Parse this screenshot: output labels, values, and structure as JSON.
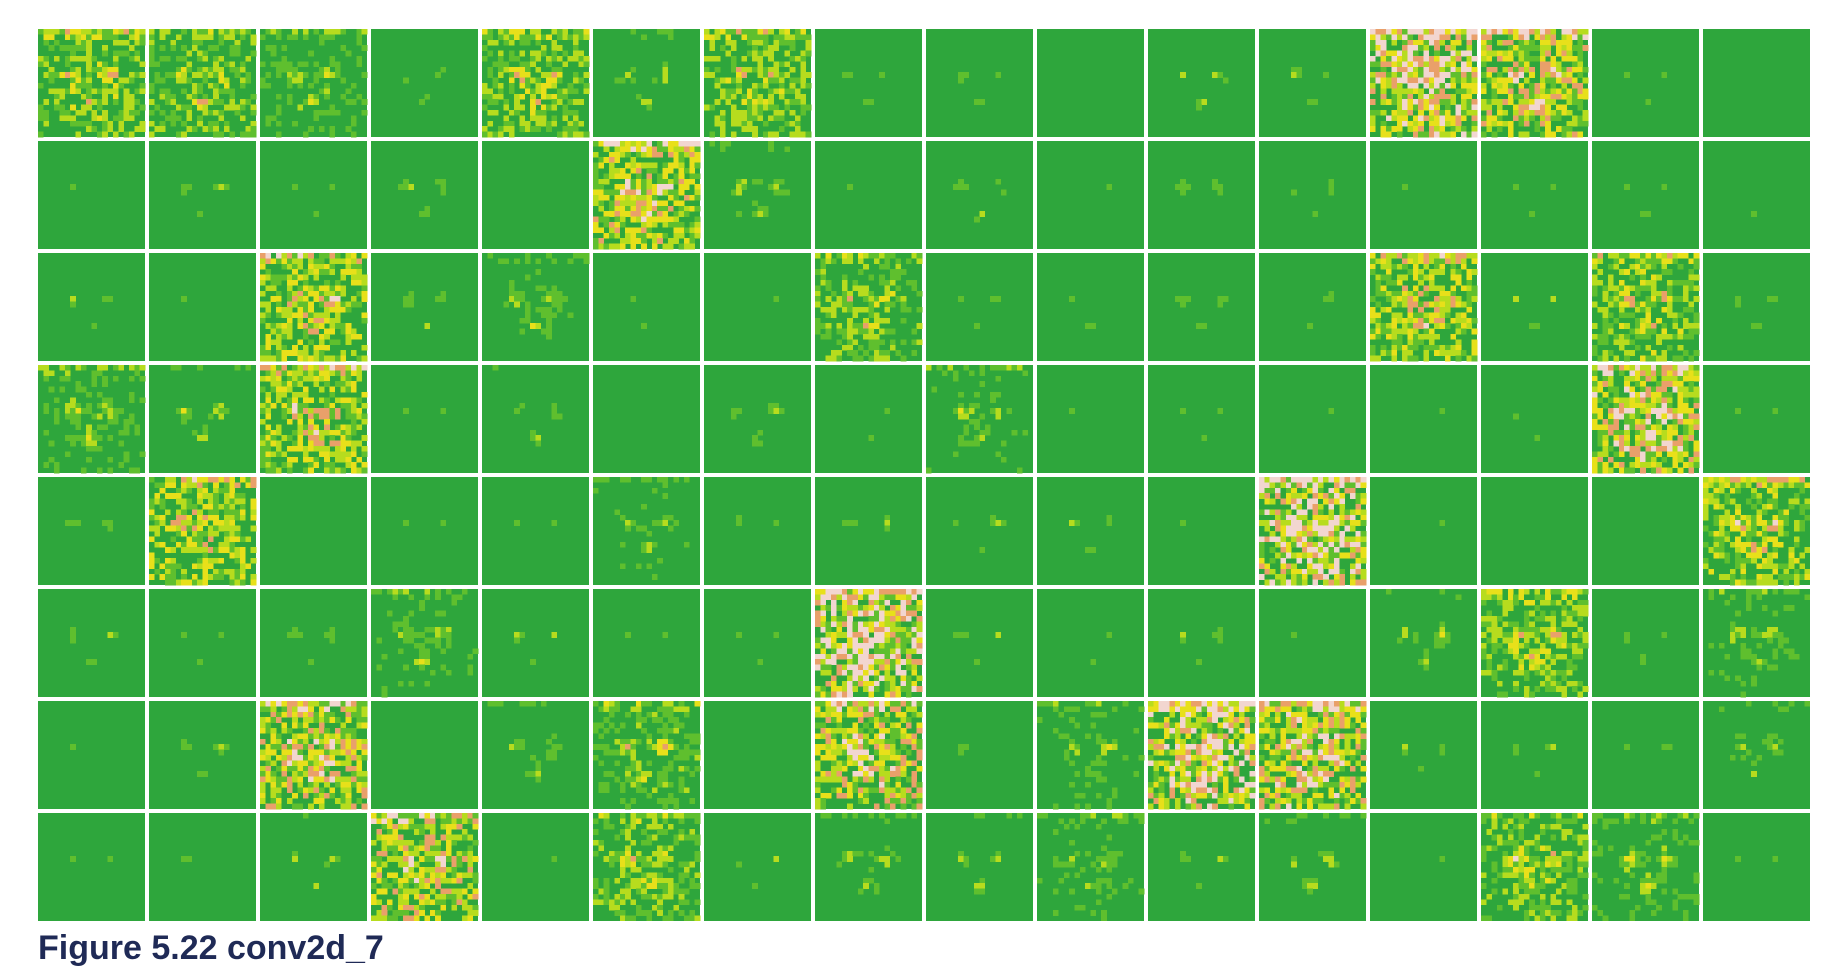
{
  "figure": {
    "caption": "Figure 5.22 conv2d_7",
    "rows": 8,
    "cols": 16,
    "palette": {
      "background": "#2ea63c",
      "low": "#5fbf2e",
      "mid": "#b7dc1e",
      "high": "#e8e01a",
      "peak": "#e9a06a",
      "max": "#f2d6d0",
      "border": "#ffffff"
    },
    "panels": [
      [
        0.62,
        0.58,
        0.48,
        0.26,
        0.6,
        0.36,
        0.62,
        0.22,
        0.2,
        0.1,
        0.3,
        0.24,
        0.9,
        0.78,
        0.22,
        0.12
      ],
      [
        0.14,
        0.24,
        0.16,
        0.3,
        0.08,
        0.78,
        0.38,
        0.16,
        0.28,
        0.12,
        0.3,
        0.24,
        0.14,
        0.14,
        0.16,
        0.14
      ],
      [
        0.24,
        0.16,
        0.7,
        0.3,
        0.4,
        0.16,
        0.1,
        0.56,
        0.24,
        0.2,
        0.22,
        0.18,
        0.72,
        0.2,
        0.64,
        0.22
      ],
      [
        0.48,
        0.34,
        0.72,
        0.16,
        0.3,
        0.12,
        0.28,
        0.16,
        0.42,
        0.06,
        0.16,
        0.1,
        0.14,
        0.18,
        0.86,
        0.12
      ],
      [
        0.2,
        0.7,
        0.06,
        0.16,
        0.08,
        0.4,
        0.2,
        0.24,
        0.26,
        0.22,
        0.1,
        0.92,
        0.1,
        0.1,
        0.12,
        0.66
      ],
      [
        0.22,
        0.16,
        0.22,
        0.42,
        0.22,
        0.14,
        0.14,
        0.96,
        0.2,
        0.18,
        0.22,
        0.16,
        0.34,
        0.62,
        0.28,
        0.42
      ],
      [
        0.16,
        0.2,
        0.82,
        0.04,
        0.36,
        0.52,
        0.04,
        0.84,
        0.2,
        0.42,
        0.9,
        0.86,
        0.24,
        0.18,
        0.2,
        0.36
      ],
      [
        0.16,
        0.2,
        0.3,
        0.78,
        0.16,
        0.56,
        0.2,
        0.36,
        0.34,
        0.42,
        0.24,
        0.36,
        0.14,
        0.6,
        0.46,
        0.1
      ]
    ]
  }
}
